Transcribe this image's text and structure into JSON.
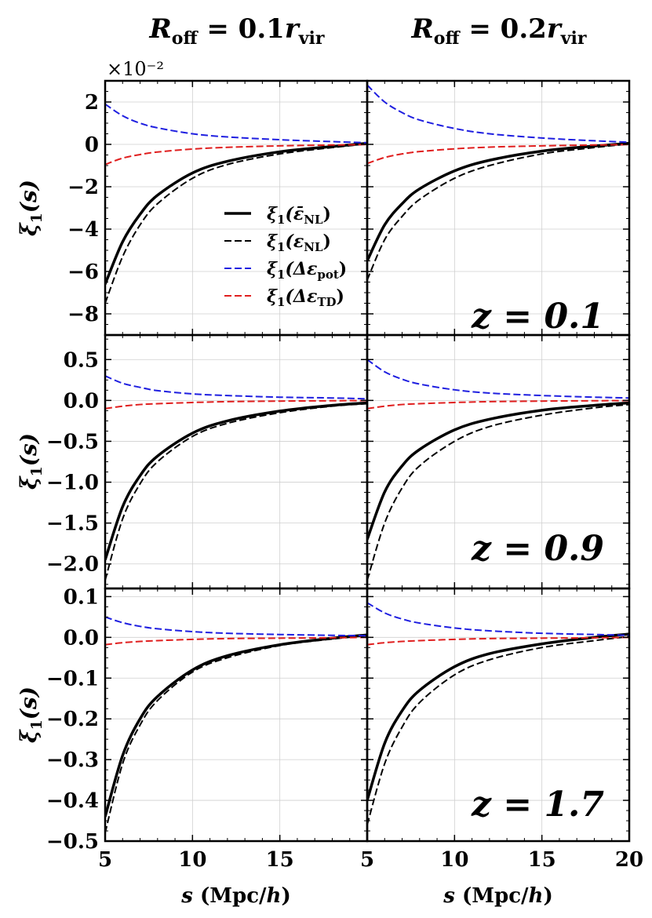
{
  "chart_data": {
    "type": "line",
    "layout": "3x2 grid of panels, shared x-axis per column, shared y-axis per row",
    "column_titles": [
      {
        "base": "R",
        "sub": "off",
        "eq": " = 0.1",
        "r": "r",
        "rsub": "vir"
      },
      {
        "base": "R",
        "sub": "off",
        "eq": " = 0.2",
        "r": "r",
        "rsub": "vir"
      }
    ],
    "xlabel": {
      "var": "s",
      "units_pre": " (Mpc/",
      "units_var": "h",
      "units_post": ")"
    },
    "ylabel": {
      "sym": "ξ",
      "sub": "1",
      "arg": "(s)"
    },
    "xlim": [
      5,
      20
    ],
    "xticks": [
      5,
      10,
      15,
      20
    ],
    "xtick_labels_left": [
      "5",
      "10",
      "15",
      ""
    ],
    "xtick_labels_right": [
      "5",
      "10",
      "15",
      "20"
    ],
    "grid": true,
    "legend": {
      "placement": "top-left panel, lower middle",
      "entries": [
        {
          "label": "ξ1(ε̄NL)",
          "sym": "ξ",
          "sub1": "1",
          "arg": "(ε̄",
          "argsub": "NL",
          "close": ")",
          "color": "#000000",
          "style": "solid"
        },
        {
          "label": "ξ1(εNL)",
          "sym": "ξ",
          "sub1": "1",
          "arg": "(ε",
          "argsub": "NL",
          "close": ")",
          "color": "#000000",
          "style": "dashed"
        },
        {
          "label": "ξ1(Δεpot)",
          "sym": "ξ",
          "sub1": "1",
          "arg": "(Δε",
          "argsub": "pot",
          "close": ")",
          "color": "#1f1fe0",
          "style": "dashed"
        },
        {
          "label": "ξ1(ΔεTD)",
          "sym": "ξ",
          "sub1": "1",
          "arg": "(Δε",
          "argsub": "TD",
          "close": ")",
          "color": "#e01f1f",
          "style": "dashed"
        }
      ]
    },
    "rows": [
      {
        "redshift_label": "z = 0.1",
        "ylim": [
          -9,
          3
        ],
        "yticks": [
          -8,
          -6,
          -4,
          -2,
          0,
          2
        ],
        "ytick_labels": [
          "−8",
          "−6",
          "−4",
          "−2",
          "0",
          "2"
        ],
        "offset_text": "×10⁻²",
        "panels": [
          {
            "column": 0,
            "series": [
              {
                "name": "ξ1(ε̄NL)",
                "x": [
                  5,
                  6,
                  7,
                  8,
                  10,
                  12,
                  15,
                  18,
                  20
                ],
                "y": [
                  -6.6,
                  -4.6,
                  -3.3,
                  -2.4,
                  -1.35,
                  -0.8,
                  -0.35,
                  -0.1,
                  0.05
                ]
              },
              {
                "name": "ξ1(εNL)",
                "x": [
                  5,
                  6,
                  7,
                  8,
                  10,
                  12,
                  15,
                  18,
                  20
                ],
                "y": [
                  -7.5,
                  -5.3,
                  -3.8,
                  -2.8,
                  -1.6,
                  -0.95,
                  -0.45,
                  -0.15,
                  0.02
                ]
              },
              {
                "name": "ξ1(Δεpot)",
                "x": [
                  5,
                  6,
                  7,
                  8,
                  10,
                  12,
                  15,
                  18,
                  20
                ],
                "y": [
                  1.9,
                  1.35,
                  1.0,
                  0.78,
                  0.5,
                  0.35,
                  0.22,
                  0.13,
                  0.08
                ]
              },
              {
                "name": "ξ1(ΔεTD)",
                "x": [
                  5,
                  6,
                  7,
                  8,
                  10,
                  12,
                  15,
                  18,
                  20
                ],
                "y": [
                  -0.95,
                  -0.65,
                  -0.48,
                  -0.36,
                  -0.22,
                  -0.14,
                  -0.07,
                  -0.03,
                  -0.01
                ]
              }
            ]
          },
          {
            "column": 1,
            "series": [
              {
                "name": "ξ1(ε̄NL)",
                "x": [
                  5,
                  6,
                  7,
                  8,
                  10,
                  12,
                  15,
                  18,
                  20
                ],
                "y": [
                  -5.5,
                  -3.8,
                  -2.8,
                  -2.1,
                  -1.25,
                  -0.75,
                  -0.32,
                  -0.08,
                  0.05
                ]
              },
              {
                "name": "ξ1(εNL)",
                "x": [
                  5,
                  6,
                  7,
                  8,
                  10,
                  12,
                  15,
                  18,
                  20
                ],
                "y": [
                  -6.4,
                  -4.5,
                  -3.4,
                  -2.6,
                  -1.6,
                  -1.0,
                  -0.45,
                  -0.15,
                  0.02
                ]
              },
              {
                "name": "ξ1(Δεpot)",
                "x": [
                  5,
                  6,
                  7,
                  8,
                  10,
                  12,
                  15,
                  18,
                  20
                ],
                "y": [
                  2.8,
                  2.0,
                  1.5,
                  1.15,
                  0.75,
                  0.5,
                  0.3,
                  0.17,
                  0.1
                ]
              },
              {
                "name": "ξ1(ΔεTD)",
                "x": [
                  5,
                  6,
                  7,
                  8,
                  10,
                  12,
                  15,
                  18,
                  20
                ],
                "y": [
                  -0.9,
                  -0.62,
                  -0.45,
                  -0.34,
                  -0.21,
                  -0.13,
                  -0.07,
                  -0.03,
                  -0.01
                ]
              }
            ]
          }
        ]
      },
      {
        "redshift_label": "z = 0.9",
        "ylim": [
          -2.3,
          0.8
        ],
        "yticks": [
          -2.0,
          -1.5,
          -1.0,
          -0.5,
          0.0,
          0.5
        ],
        "ytick_labels": [
          "−2.0",
          "−1.5",
          "−1.0",
          "−0.5",
          "0.0",
          "0.5"
        ],
        "offset_text": "",
        "panels": [
          {
            "column": 0,
            "series": [
              {
                "name": "ξ1(ε̄NL)",
                "x": [
                  5,
                  6,
                  7,
                  8,
                  10,
                  12,
                  15,
                  18,
                  20
                ],
                "y": [
                  -1.95,
                  -1.3,
                  -0.92,
                  -0.68,
                  -0.4,
                  -0.25,
                  -0.13,
                  -0.06,
                  -0.03
                ]
              },
              {
                "name": "ξ1(εNL)",
                "x": [
                  5,
                  6,
                  7,
                  8,
                  10,
                  12,
                  15,
                  18,
                  20
                ],
                "y": [
                  -2.2,
                  -1.45,
                  -1.02,
                  -0.75,
                  -0.44,
                  -0.28,
                  -0.15,
                  -0.07,
                  -0.04
                ]
              },
              {
                "name": "ξ1(Δεpot)",
                "x": [
                  5,
                  6,
                  7,
                  8,
                  10,
                  12,
                  15,
                  18,
                  20
                ],
                "y": [
                  0.3,
                  0.21,
                  0.16,
                  0.12,
                  0.08,
                  0.06,
                  0.04,
                  0.03,
                  0.02
                ]
              },
              {
                "name": "ξ1(ΔεTD)",
                "x": [
                  5,
                  6,
                  7,
                  8,
                  10,
                  12,
                  15,
                  18,
                  20
                ],
                "y": [
                  -0.1,
                  -0.07,
                  -0.05,
                  -0.04,
                  -0.025,
                  -0.015,
                  -0.008,
                  -0.004,
                  -0.002
                ]
              }
            ]
          },
          {
            "column": 1,
            "series": [
              {
                "name": "ξ1(ε̄NL)",
                "x": [
                  5,
                  6,
                  7,
                  8,
                  10,
                  12,
                  15,
                  18,
                  20
                ],
                "y": [
                  -1.7,
                  -1.12,
                  -0.8,
                  -0.6,
                  -0.36,
                  -0.23,
                  -0.12,
                  -0.06,
                  -0.03
                ]
              },
              {
                "name": "ξ1(εNL)",
                "x": [
                  5,
                  6,
                  7,
                  8,
                  10,
                  12,
                  15,
                  18,
                  20
                ],
                "y": [
                  -2.2,
                  -1.5,
                  -1.07,
                  -0.8,
                  -0.5,
                  -0.32,
                  -0.18,
                  -0.09,
                  -0.05
                ]
              },
              {
                "name": "ξ1(Δεpot)",
                "x": [
                  5,
                  6,
                  7,
                  8,
                  10,
                  12,
                  15,
                  18,
                  20
                ],
                "y": [
                  0.5,
                  0.35,
                  0.26,
                  0.2,
                  0.13,
                  0.09,
                  0.06,
                  0.04,
                  0.03
                ]
              },
              {
                "name": "ξ1(ΔεTD)",
                "x": [
                  5,
                  6,
                  7,
                  8,
                  10,
                  12,
                  15,
                  18,
                  20
                ],
                "y": [
                  -0.1,
                  -0.07,
                  -0.05,
                  -0.04,
                  -0.025,
                  -0.015,
                  -0.008,
                  -0.004,
                  -0.002
                ]
              }
            ]
          }
        ]
      },
      {
        "redshift_label": "z = 1.7",
        "ylim": [
          -0.5,
          0.12
        ],
        "yticks": [
          -0.5,
          -0.4,
          -0.3,
          -0.2,
          -0.1,
          0.0,
          0.1
        ],
        "ytick_labels": [
          "−0.5",
          "−0.4",
          "−0.3",
          "−0.2",
          "−0.1",
          "0.0",
          "0.1"
        ],
        "offset_text": "",
        "panels": [
          {
            "column": 0,
            "series": [
              {
                "name": "ξ1(ε̄NL)",
                "x": [
                  5,
                  6,
                  7,
                  8,
                  10,
                  12,
                  15,
                  18,
                  20
                ],
                "y": [
                  -0.44,
                  -0.29,
                  -0.2,
                  -0.145,
                  -0.08,
                  -0.045,
                  -0.018,
                  -0.002,
                  0.006
                ]
              },
              {
                "name": "ξ1(εNL)",
                "x": [
                  5,
                  6,
                  7,
                  8,
                  10,
                  12,
                  15,
                  18,
                  20
                ],
                "y": [
                  -0.48,
                  -0.31,
                  -0.215,
                  -0.155,
                  -0.085,
                  -0.05,
                  -0.02,
                  -0.004,
                  0.004
                ]
              },
              {
                "name": "ξ1(Δεpot)",
                "x": [
                  5,
                  6,
                  7,
                  8,
                  10,
                  12,
                  15,
                  18,
                  20
                ],
                "y": [
                  0.05,
                  0.036,
                  0.027,
                  0.021,
                  0.014,
                  0.01,
                  0.007,
                  0.005,
                  0.004
                ]
              },
              {
                "name": "ξ1(ΔεTD)",
                "x": [
                  5,
                  6,
                  7,
                  8,
                  10,
                  12,
                  15,
                  18,
                  20
                ],
                "y": [
                  -0.018,
                  -0.013,
                  -0.01,
                  -0.008,
                  -0.005,
                  -0.003,
                  -0.002,
                  -0.001,
                  0.0
                ]
              }
            ]
          },
          {
            "column": 1,
            "series": [
              {
                "name": "ξ1(ε̄NL)",
                "x": [
                  5,
                  6,
                  7,
                  8,
                  10,
                  12,
                  15,
                  18,
                  20
                ],
                "y": [
                  -0.4,
                  -0.26,
                  -0.18,
                  -0.13,
                  -0.072,
                  -0.04,
                  -0.016,
                  0.0,
                  0.008
                ]
              },
              {
                "name": "ξ1(εNL)",
                "x": [
                  5,
                  6,
                  7,
                  8,
                  10,
                  12,
                  15,
                  18,
                  20
                ],
                "y": [
                  -0.46,
                  -0.31,
                  -0.22,
                  -0.16,
                  -0.092,
                  -0.055,
                  -0.025,
                  -0.008,
                  0.002
                ]
              },
              {
                "name": "ξ1(Δεpot)",
                "x": [
                  5,
                  6,
                  7,
                  8,
                  10,
                  12,
                  15,
                  18,
                  20
                ],
                "y": [
                  0.085,
                  0.06,
                  0.045,
                  0.035,
                  0.023,
                  0.016,
                  0.01,
                  0.007,
                  0.005
                ]
              },
              {
                "name": "ξ1(ΔεTD)",
                "x": [
                  5,
                  6,
                  7,
                  8,
                  10,
                  12,
                  15,
                  18,
                  20
                ],
                "y": [
                  -0.018,
                  -0.013,
                  -0.01,
                  -0.008,
                  -0.005,
                  -0.003,
                  -0.002,
                  -0.001,
                  0.0
                ]
              }
            ]
          }
        ]
      }
    ]
  }
}
